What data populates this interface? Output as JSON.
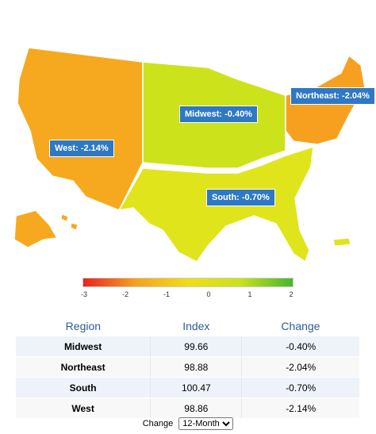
{
  "map": {
    "regions": [
      {
        "name": "West",
        "label": "West: -2.14%",
        "color": "#f6a81e"
      },
      {
        "name": "Midwest",
        "label": "Midwest: -0.40%",
        "color": "#cce31c"
      },
      {
        "name": "South",
        "label": "South: -0.70%",
        "color": "#dfe51a"
      },
      {
        "name": "Northeast",
        "label": "Northeast: -2.04%",
        "color": "#f7a01f"
      }
    ]
  },
  "legend": {
    "ticks": [
      "-3",
      "-2",
      "-1",
      "0",
      "1",
      "2"
    ],
    "colors": [
      "#e8231f",
      "#f5a21e",
      "#f1dd17",
      "#c9e21c",
      "#44b82c"
    ]
  },
  "table": {
    "headers": [
      "Region",
      "Index",
      "Change"
    ],
    "rows": [
      [
        "Midwest",
        "99.66",
        "-0.40%"
      ],
      [
        "Northeast",
        "98.88",
        "-2.04%"
      ],
      [
        "South",
        "100.47",
        "-0.70%"
      ],
      [
        "West",
        "98.86",
        "-2.14%"
      ]
    ]
  },
  "controls": {
    "change_label": "Change",
    "period_selected": "12-Month"
  }
}
